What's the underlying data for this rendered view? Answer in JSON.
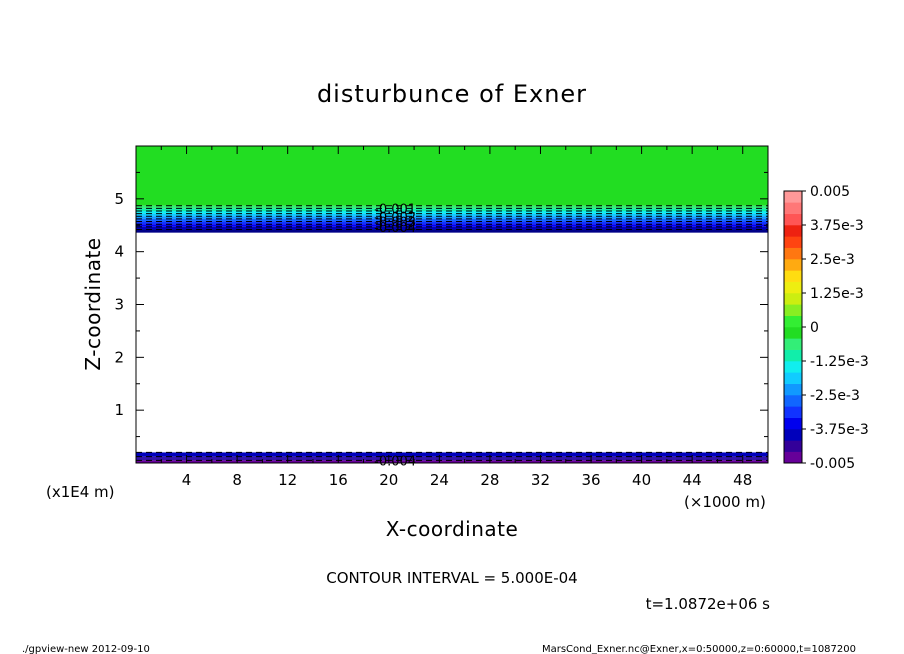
{
  "chart_data": {
    "type": "heatmap",
    "title": "disturbunce of Exner",
    "xlabel": "X-coordinate",
    "ylabel": "Z-coordinate",
    "x_unit": "(×1000 m)",
    "y_unit": "(x1E4 m)",
    "xlim": [
      0,
      50
    ],
    "ylim": [
      0,
      6
    ],
    "x_ticks": [
      4,
      8,
      12,
      16,
      20,
      24,
      28,
      32,
      36,
      40,
      44,
      48
    ],
    "y_ticks": [
      1,
      2,
      3,
      4,
      5
    ],
    "contour_interval_text": "CONTOUR INTERVAL = 5.000E-04",
    "time_text": "t=1.0872e+06 s",
    "footer_left": "./gpview-new  2012-09-10",
    "footer_right": "MarsCond_Exner.nc@Exner,x=0:50000,z=0:60000,t=1087200",
    "bands": [
      {
        "z0": 4.87,
        "z1": 6.0,
        "value_range": [
          0,
          0.000625
        ],
        "color": "#22dd22"
      },
      {
        "z0": 4.82,
        "z1": 4.87,
        "value_range": [
          -0.0005,
          0
        ],
        "color": "#33ee77"
      },
      {
        "z0": 4.77,
        "z1": 4.82,
        "value_range": [
          -0.001,
          -0.0005
        ],
        "color": "#11eeaa"
      },
      {
        "z0": 4.72,
        "z1": 4.77,
        "value_range": [
          -0.0015,
          -0.001
        ],
        "color": "#11eeee"
      },
      {
        "z0": 4.67,
        "z1": 4.72,
        "value_range": [
          -0.002,
          -0.0015
        ],
        "color": "#11ccff"
      },
      {
        "z0": 4.62,
        "z1": 4.67,
        "value_range": [
          -0.0025,
          -0.002
        ],
        "color": "#1199ff"
      },
      {
        "z0": 4.57,
        "z1": 4.62,
        "value_range": [
          -0.003,
          -0.0025
        ],
        "color": "#1166ff"
      },
      {
        "z0": 4.52,
        "z1": 4.57,
        "value_range": [
          -0.0035,
          -0.003
        ],
        "color": "#1133ff"
      },
      {
        "z0": 4.47,
        "z1": 4.52,
        "value_range": [
          -0.004,
          -0.0035
        ],
        "color": "#0000ee"
      },
      {
        "z0": 4.42,
        "z1": 4.47,
        "value_range": [
          -0.0045,
          -0.004
        ],
        "color": "#0000bb"
      },
      {
        "z0": 4.36,
        "z1": 4.42,
        "value_range": [
          -0.005,
          -0.0045
        ],
        "color": "#000088"
      },
      {
        "z0": 0.12,
        "z1": 0.2,
        "value_range": [
          -0.0045,
          -0.004
        ],
        "color": "#0000bb"
      },
      {
        "z0": 0.05,
        "z1": 0.12,
        "value_range": [
          -0.005,
          -0.0045
        ],
        "color": "#3311aa"
      },
      {
        "z0": 0.0,
        "z1": 0.05,
        "value_range": [
          -0.005,
          -0.005
        ],
        "color": "#660099"
      }
    ],
    "contour_lines_z": [
      4.87,
      4.82,
      4.77,
      4.72,
      4.67,
      4.62,
      4.57,
      4.52,
      4.47,
      4.42,
      0.2,
      0.12,
      0.05
    ],
    "contour_labels": [
      {
        "text": "-0.001",
        "x": 20.5,
        "z": 4.82
      },
      {
        "text": "-0.002",
        "x": 20.5,
        "z": 4.67
      },
      {
        "text": "-0.003",
        "x": 20.5,
        "z": 4.57
      },
      {
        "text": "-0.004",
        "x": 20.5,
        "z": 4.47
      },
      {
        "text": "-0.004",
        "x": 20.5,
        "z": 0.05
      }
    ],
    "colorbar": {
      "levels": [
        -0.005,
        -0.00375,
        -0.0025,
        -0.00125,
        0,
        0.00125,
        0.0025,
        0.00375,
        0.005
      ],
      "labels": [
        "-0.005",
        "-3.75e-3",
        "-2.5e-3",
        "-1.25e-3",
        "0",
        "1.25e-3",
        "2.5e-3",
        "3.75e-3",
        "0.005"
      ],
      "colors": [
        "#660099",
        "#330099",
        "#0000bb",
        "#0000ee",
        "#1133ff",
        "#1166ff",
        "#1199ff",
        "#11ccff",
        "#11eeee",
        "#11eeaa",
        "#33ee77",
        "#22dd22",
        "#33ee33",
        "#88ee22",
        "#ccee11",
        "#eeee11",
        "#ffdd11",
        "#ffaa11",
        "#ff7711",
        "#ff4411",
        "#ee2211",
        "#ff5555",
        "#ff7777",
        "#ff9999"
      ]
    }
  }
}
